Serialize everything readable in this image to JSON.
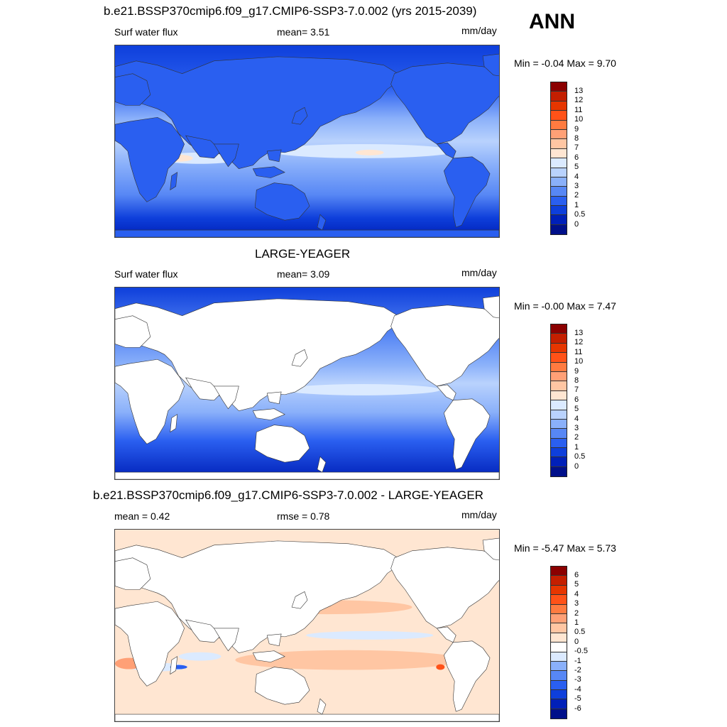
{
  "season": "ANN",
  "panels": [
    {
      "title": "b.e21.BSSP370cmip6.f09_g17.CMIP6-SSP3-7.0.002 (yrs 2015-2039)",
      "left_label": "Surf water flux",
      "center_label": "mean=   3.51",
      "units": "mm/day",
      "minmax": "Min =  -0.04 Max =   9.70",
      "colorbar": {
        "labels": [
          "13",
          "12",
          "11",
          "10",
          "9",
          "8",
          "7",
          "6",
          "5",
          "4",
          "3",
          "2",
          "1",
          "0.5",
          "0"
        ],
        "colors": [
          "#8b0000",
          "#c41f00",
          "#e63600",
          "#ff5218",
          "#ff7b40",
          "#ffa076",
          "#ffc6a3",
          "#ffe6d2",
          "#dbeaff",
          "#b9d2fd",
          "#8ab0fa",
          "#5787f5",
          "#2a5ff0",
          "#0e3fdb",
          "#0020b8",
          "#00108a"
        ]
      }
    },
    {
      "title": "LARGE-YEAGER",
      "left_label": "Surf water flux",
      "center_label": "mean=   3.09",
      "units": "mm/day",
      "minmax": "Min =  -0.00 Max =   7.47",
      "colorbar": {
        "labels": [
          "13",
          "12",
          "11",
          "10",
          "9",
          "8",
          "7",
          "6",
          "5",
          "4",
          "3",
          "2",
          "1",
          "0.5",
          "0"
        ],
        "colors": [
          "#8b0000",
          "#c41f00",
          "#e63600",
          "#ff5218",
          "#ff7b40",
          "#ffa076",
          "#ffc6a3",
          "#ffe6d2",
          "#dbeaff",
          "#b9d2fd",
          "#8ab0fa",
          "#5787f5",
          "#2a5ff0",
          "#0e3fdb",
          "#0020b8",
          "#00108a"
        ]
      }
    },
    {
      "title": "b.e21.BSSP370cmip6.f09_g17.CMIP6-SSP3-7.0.002 - LARGE-YEAGER",
      "left_label": "mean =   0.42",
      "center_label": "rmse =   0.78",
      "units": "mm/day",
      "minmax": "Min =  -5.47 Max =   5.73",
      "colorbar": {
        "labels": [
          "6",
          "5",
          "4",
          "3",
          "2",
          "1",
          "0.5",
          "0",
          "-0.5",
          "-1",
          "-2",
          "-3",
          "-4",
          "-5",
          "-6"
        ],
        "colors": [
          "#8b0000",
          "#c41f00",
          "#e63600",
          "#ff5218",
          "#ff7b40",
          "#ffa076",
          "#ffc6a3",
          "#ffe6d2",
          "#ffffff",
          "#dbeaff",
          "#8ab0fa",
          "#5787f5",
          "#2a5ff0",
          "#0e3fdb",
          "#0020b8",
          "#00108a"
        ]
      }
    }
  ]
}
